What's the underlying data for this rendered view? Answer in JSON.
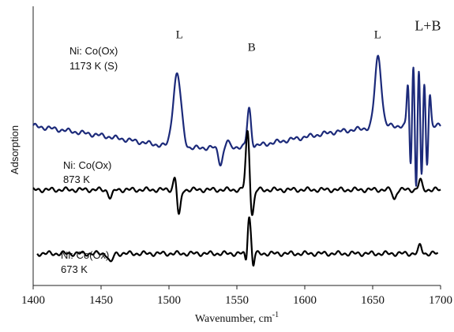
{
  "chart_data": {
    "type": "line",
    "xlabel": "Wavenumber, cm",
    "xlabel_sup": "-1",
    "ylabel": "Adsorption",
    "xlim": [
      1400,
      1700
    ],
    "xticks": [
      1400,
      1450,
      1500,
      1550,
      1600,
      1650,
      1700
    ],
    "grid": false,
    "series": [
      {
        "name_line1": "Ni: Co(Ox)",
        "name_line2": "1173  K (S)",
        "color": "#1c2a7a",
        "x_range": [
          1400,
          1700
        ],
        "offset": 100,
        "baseline": [
          [
            1400,
            0
          ],
          [
            1450,
            -6
          ],
          [
            1500,
            -13
          ],
          [
            1510,
            -14
          ],
          [
            1560,
            -13
          ],
          [
            1620,
            -4
          ],
          [
            1660,
            0
          ],
          [
            1700,
            0
          ]
        ],
        "peaks": [
          {
            "x": 1506,
            "w": 3.0,
            "amp": 46
          },
          {
            "x": 1538,
            "w": 1.6,
            "amp": -10
          },
          {
            "x": 1543,
            "w": 1.2,
            "amp": 4
          },
          {
            "x": 1559,
            "w": 1.4,
            "amp": 24
          },
          {
            "x": 1654,
            "w": 2.4,
            "amp": 44
          },
          {
            "x": 1676,
            "w": 0.9,
            "amp": 28
          },
          {
            "x": 1678,
            "w": 0.9,
            "amp": -30
          },
          {
            "x": 1680,
            "w": 0.9,
            "amp": 44
          },
          {
            "x": 1682,
            "w": 0.9,
            "amp": -44
          },
          {
            "x": 1684,
            "w": 0.9,
            "amp": 40
          },
          {
            "x": 1686,
            "w": 0.9,
            "amp": -36
          },
          {
            "x": 1688,
            "w": 0.9,
            "amp": 30
          },
          {
            "x": 1690,
            "w": 0.9,
            "amp": -28
          },
          {
            "x": 1692,
            "w": 0.9,
            "amp": 22
          }
        ]
      },
      {
        "name_line1": "Ni: Co(Ox)",
        "name_line2": "873  K",
        "color": "#000000",
        "x_range": [
          1400,
          1700
        ],
        "offset": 60,
        "baseline": [
          [
            1400,
            0
          ],
          [
            1700,
            0
          ]
        ],
        "peaks": [
          {
            "x": 1457,
            "w": 1.5,
            "amp": -5
          },
          {
            "x": 1505,
            "w": 1.4,
            "amp": 12
          },
          {
            "x": 1507,
            "w": 1.4,
            "amp": -20
          },
          {
            "x": 1558,
            "w": 1.4,
            "amp": 38
          },
          {
            "x": 1561,
            "w": 1.4,
            "amp": -18
          },
          {
            "x": 1666,
            "w": 1.2,
            "amp": -6
          },
          {
            "x": 1685,
            "w": 1.2,
            "amp": 6
          }
        ]
      },
      {
        "name_line1": "Ni: Co(Ox)",
        "name_line2": "673  K",
        "color": "#000000",
        "x_range": [
          1403,
          1698
        ],
        "offset": 20,
        "baseline": [
          [
            1403,
            0
          ],
          [
            1698,
            0
          ]
        ],
        "peaks": [
          {
            "x": 1457,
            "w": 1.5,
            "amp": -6
          },
          {
            "x": 1557,
            "w": 0.8,
            "amp": -8
          },
          {
            "x": 1559,
            "w": 1.2,
            "amp": 24
          },
          {
            "x": 1562,
            "w": 0.8,
            "amp": -8
          },
          {
            "x": 1685,
            "w": 1.2,
            "amp": 5
          }
        ]
      }
    ],
    "annotations": [
      {
        "text": "L",
        "x": 1505,
        "y": 155,
        "size": 15
      },
      {
        "text": "B",
        "x": 1558,
        "y": 147,
        "size": 15
      },
      {
        "text": "L",
        "x": 1651,
        "y": 155,
        "size": 15
      },
      {
        "text": "L+B",
        "x": 1681,
        "y": 160,
        "size": 18
      }
    ]
  }
}
